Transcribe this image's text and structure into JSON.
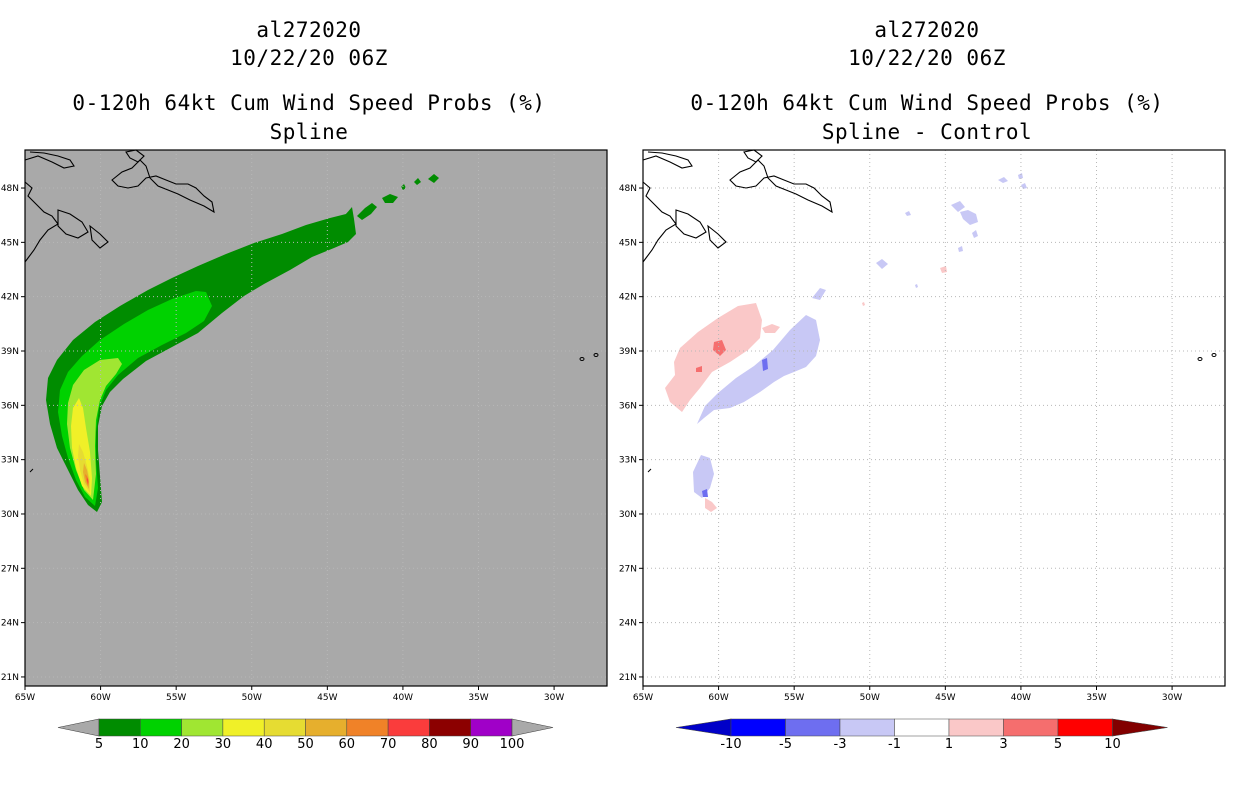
{
  "colors": {
    "left_background": "#a9a9a9",
    "right_background": "#ffffff",
    "grid": "#b8b8b8",
    "coast": "#000000"
  },
  "panels": [
    {
      "id": "left",
      "title_lines": [
        "al272020",
        "10/22/20 06Z",
        "0-120h 64kt Cum Wind Speed Probs (%)",
        "Spline"
      ]
    },
    {
      "id": "right",
      "title_lines": [
        "al272020",
        "10/22/20 06Z",
        "0-120h 64kt Cum Wind Speed Probs (%)",
        "Spline - Control"
      ]
    }
  ],
  "map": {
    "lon_range": [
      -65,
      -26.5
    ],
    "lat_range": [
      20.5,
      50.1
    ],
    "lon_ticks": [
      {
        "v": -65,
        "t": "65W"
      },
      {
        "v": -60,
        "t": "60W"
      },
      {
        "v": -55,
        "t": "55W"
      },
      {
        "v": -50,
        "t": "50W"
      },
      {
        "v": -45,
        "t": "45W"
      },
      {
        "v": -40,
        "t": "40W"
      },
      {
        "v": -35,
        "t": "35W"
      },
      {
        "v": -30,
        "t": "30W"
      }
    ],
    "lat_ticks": [
      {
        "v": 21,
        "t": "21N"
      },
      {
        "v": 24,
        "t": "24N"
      },
      {
        "v": 27,
        "t": "27N"
      },
      {
        "v": 30,
        "t": "30N"
      },
      {
        "v": 33,
        "t": "33N"
      },
      {
        "v": 36,
        "t": "36N"
      },
      {
        "v": 39,
        "t": "39N"
      },
      {
        "v": 42,
        "t": "42N"
      },
      {
        "v": 45,
        "t": "45N"
      },
      {
        "v": 48,
        "t": "48N"
      }
    ]
  },
  "left_colorbar": {
    "colors": [
      "#008c00",
      "#00d200",
      "#a0e632",
      "#f0f028",
      "#e6dc32",
      "#e6af2d",
      "#f08228",
      "#fa3c3c",
      "#8c0000",
      "#a000c8"
    ],
    "end_color": "#a9a9a9",
    "labels": [
      "5",
      "10",
      "20",
      "30",
      "40",
      "50",
      "60",
      "70",
      "80",
      "90",
      "100"
    ]
  },
  "right_colorbar": {
    "colors": [
      "#0000c8",
      "#0000ff",
      "#6e6ef0",
      "#c8c8f5",
      "#ffffff",
      "#fac8c8",
      "#f56e6e",
      "#ff0000",
      "#820000"
    ],
    "labels": [
      "-10",
      "-5",
      "-3",
      "-1",
      "1",
      "3",
      "5",
      "10"
    ]
  },
  "legend": {
    "left_levels": [
      "5%",
      "10%",
      "20%",
      "30%",
      "40%",
      "50%",
      "60%",
      "70%",
      "80%"
    ],
    "right_levels": [
      "-1%",
      "-3%",
      "-5%",
      "1%",
      "3%"
    ]
  }
}
